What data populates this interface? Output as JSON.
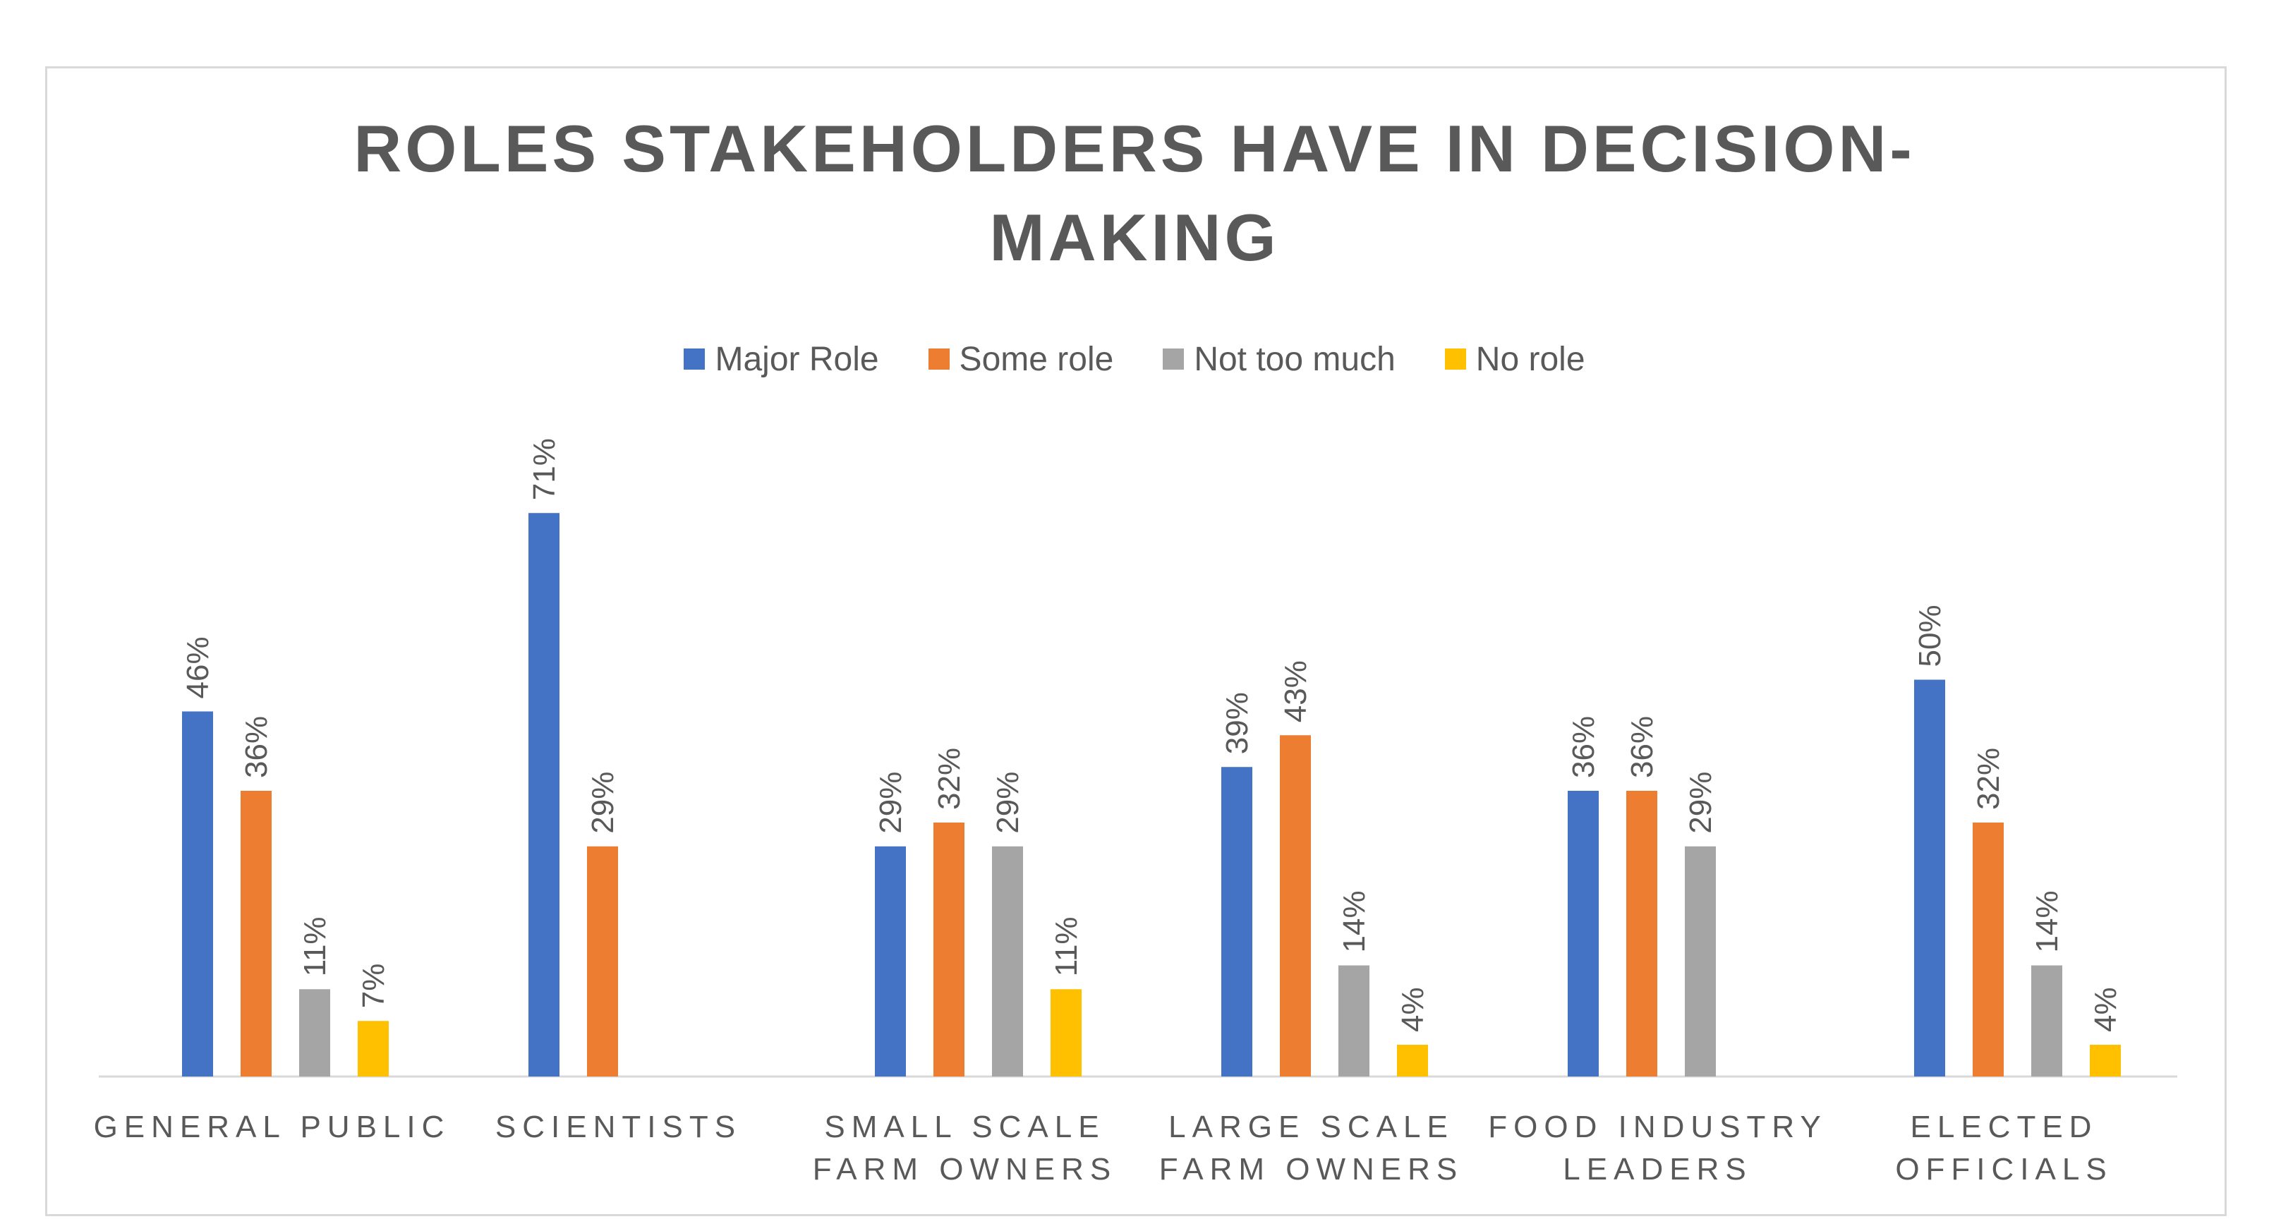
{
  "chart_data": {
    "type": "bar",
    "title": "ROLES STAKEHOLDERS HAVE IN DECISION-MAKING",
    "title_lines": [
      "ROLES STAKEHOLDERS HAVE IN DECISION-",
      "MAKING"
    ],
    "categories": [
      "GENERAL PUBLIC",
      "SCIENTISTS",
      "SMALL SCALE FARM OWNERS",
      "LARGE SCALE FARM OWNERS",
      "FOOD INDUSTRY LEADERS",
      "ELECTED OFFICIALS"
    ],
    "category_lines": [
      [
        "GENERAL PUBLIC"
      ],
      [
        "SCIENTISTS"
      ],
      [
        "SMALL SCALE",
        "FARM OWNERS"
      ],
      [
        "LARGE SCALE",
        "FARM OWNERS"
      ],
      [
        "FOOD INDUSTRY",
        "LEADERS"
      ],
      [
        "ELECTED",
        "OFFICIALS"
      ]
    ],
    "series": [
      {
        "name": "Major Role",
        "color": "#4472c4",
        "values": [
          46,
          71,
          29,
          39,
          36,
          50
        ]
      },
      {
        "name": "Some role",
        "color": "#ed7d31",
        "values": [
          36,
          29,
          32,
          43,
          36,
          32
        ]
      },
      {
        "name": "Not too much",
        "color": "#a5a5a5",
        "values": [
          11,
          null,
          29,
          14,
          29,
          14
        ]
      },
      {
        "name": "No role",
        "color": "#ffc000",
        "values": [
          7,
          null,
          11,
          4,
          null,
          4
        ]
      }
    ],
    "value_suffix": "%",
    "ylim": [
      0,
      80
    ],
    "legend_position": "top",
    "grid": false,
    "xlabel": "",
    "ylabel": ""
  }
}
